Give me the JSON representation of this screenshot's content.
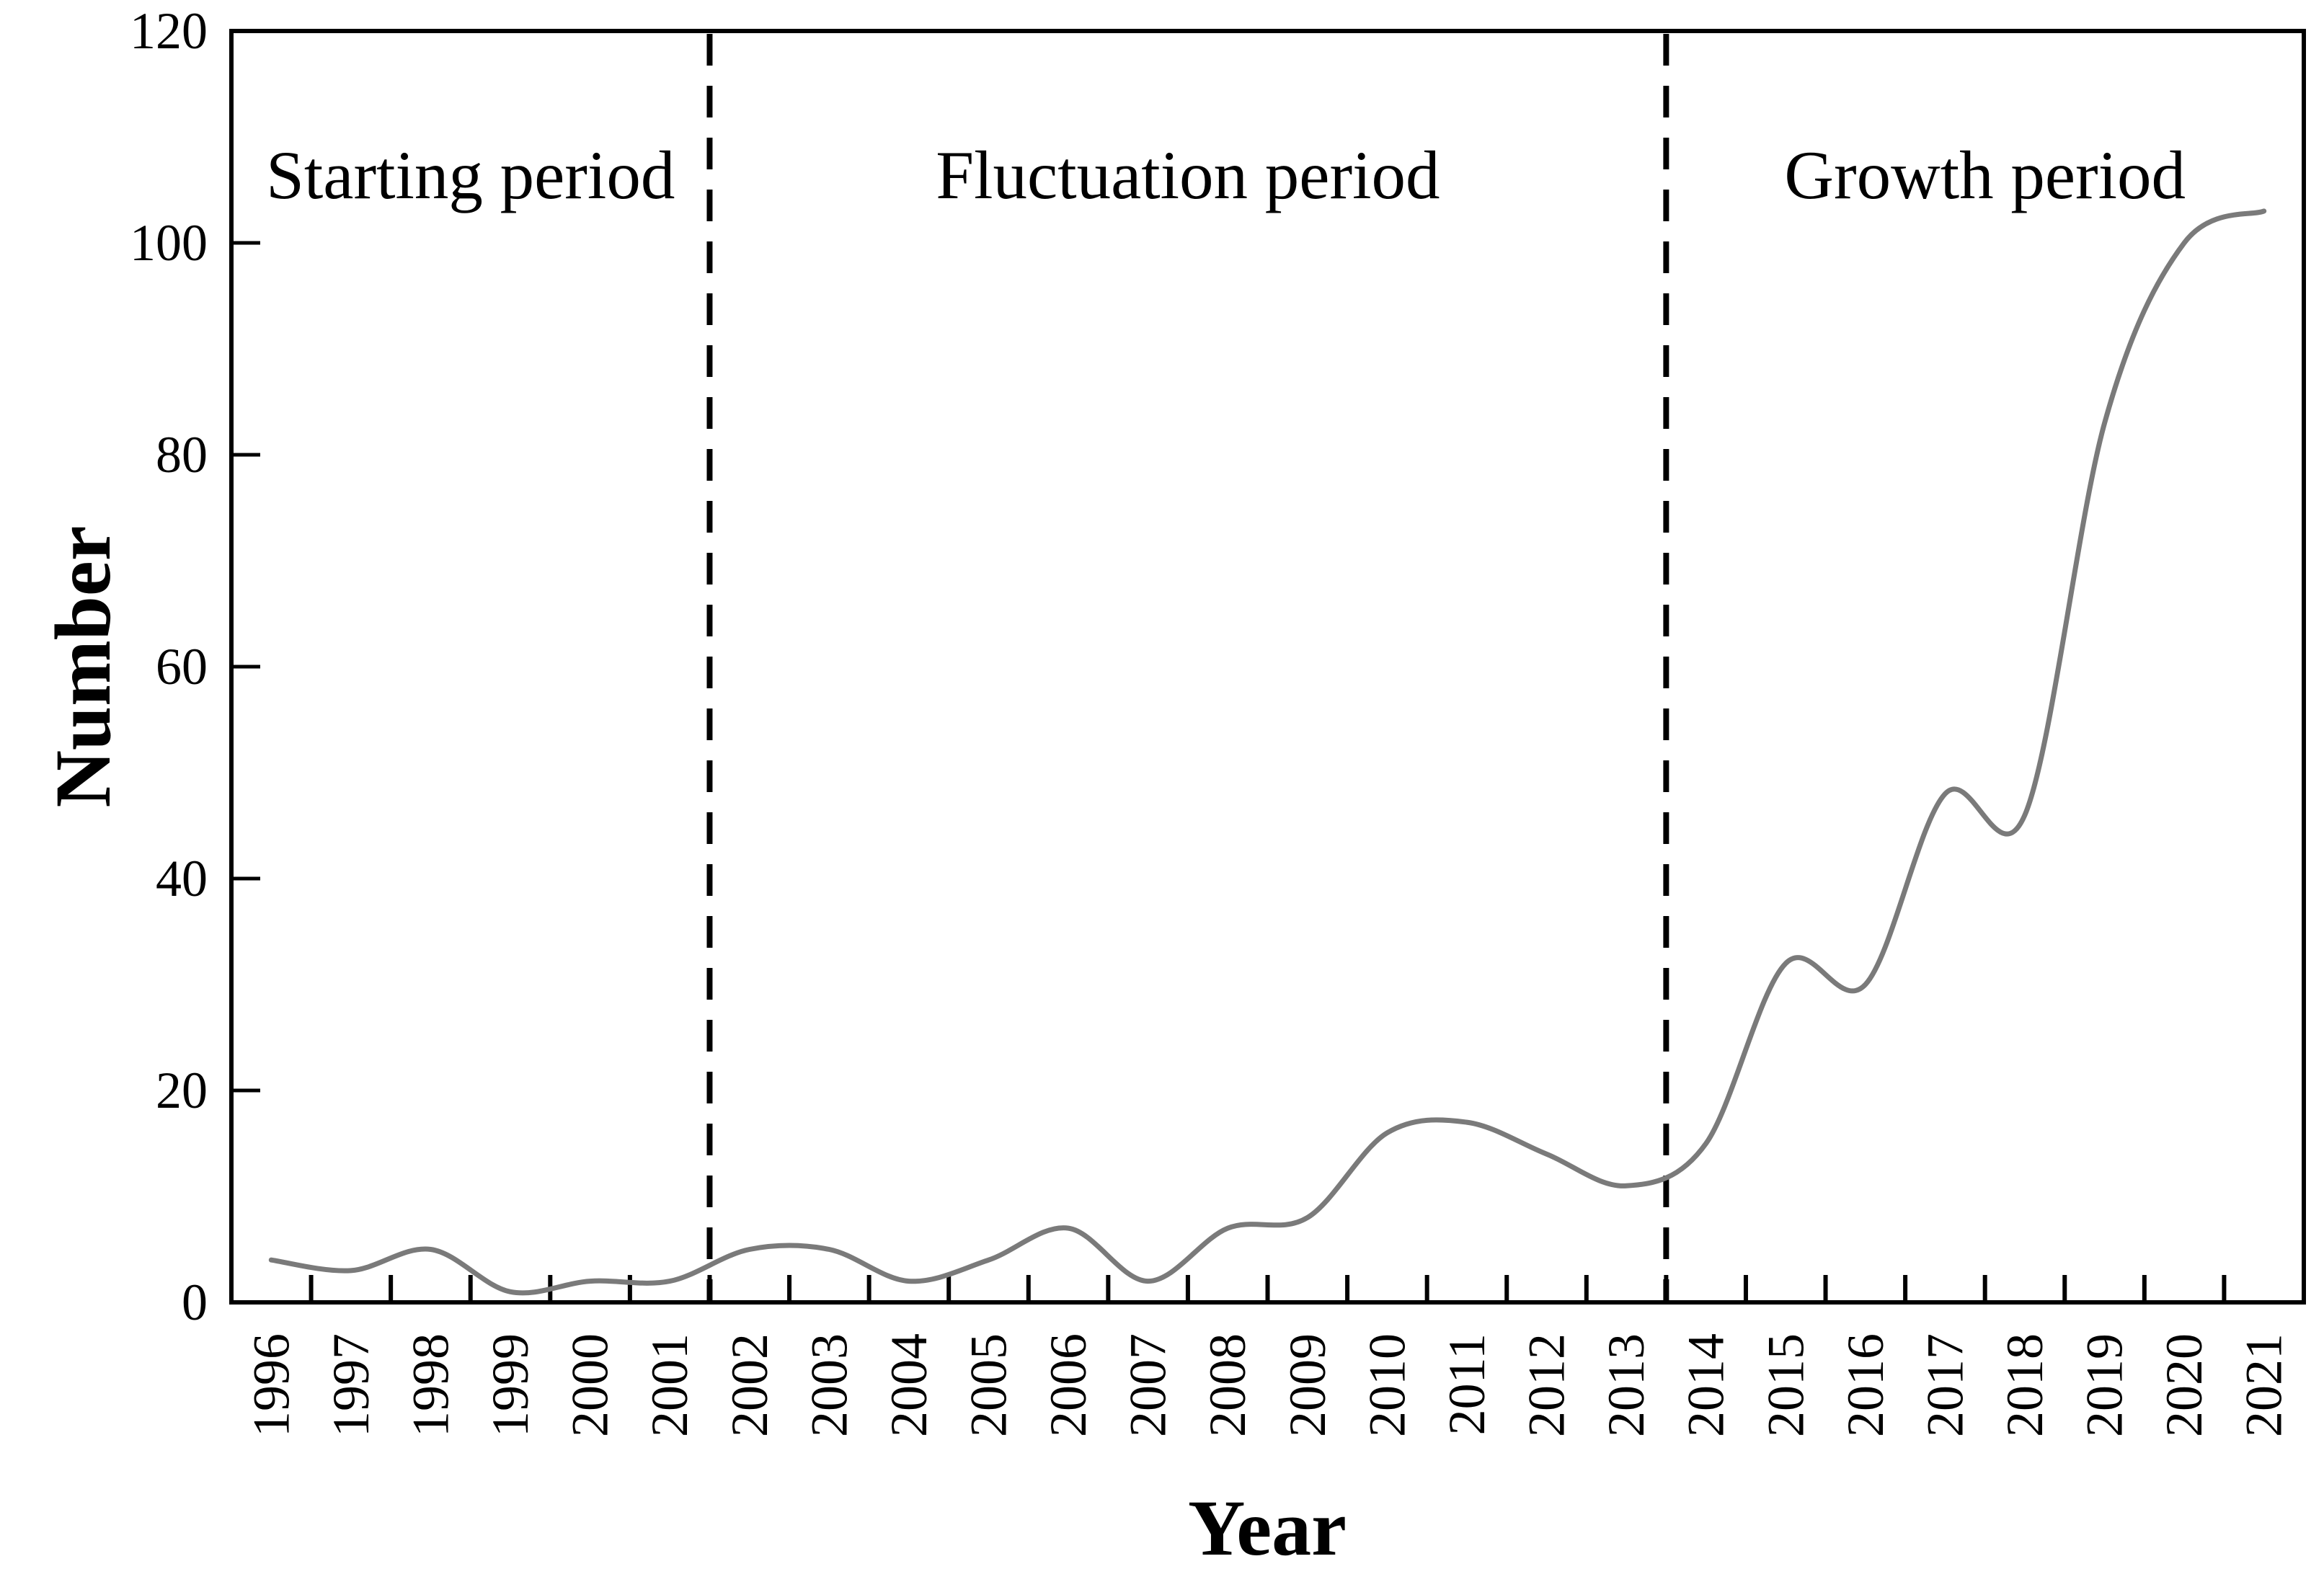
{
  "figure": {
    "background": "#ffffff",
    "axis_color": "#000000",
    "ylabel": "Number",
    "xlabel": "Year"
  },
  "chart_data": {
    "type": "line",
    "title": "",
    "xlabel": "Year",
    "ylabel": "Number",
    "categories": [
      "1996",
      "1997",
      "1998",
      "1999",
      "2000",
      "2001",
      "2002",
      "2003",
      "2004",
      "2005",
      "2006",
      "2007",
      "2008",
      "2009",
      "2010",
      "2011",
      "2012",
      "2013",
      "2014",
      "2015",
      "2016",
      "2017",
      "2018",
      "2019",
      "2020",
      "2021"
    ],
    "values": [
      4,
      3,
      5,
      1,
      2,
      2,
      5,
      5,
      2,
      4,
      7,
      2,
      7,
      8,
      16,
      17,
      14,
      11,
      15,
      32,
      30,
      48,
      46,
      83,
      100,
      103
    ],
    "ylim": [
      0,
      120
    ],
    "yticks": [
      0,
      20,
      40,
      60,
      80,
      100,
      120
    ],
    "grid": false,
    "legend_position": "none",
    "smooth": true,
    "line_color": "#7a7a7a",
    "divider_color": "#000000",
    "dashed_dividers_after": [
      "2001",
      "2013"
    ],
    "annotations": [
      {
        "text": "Starting period",
        "from_year": "1996",
        "to_year": "2001"
      },
      {
        "text": "Fluctuation period",
        "from_year": "2002",
        "to_year": "2013"
      },
      {
        "text": "Growth period",
        "from_year": "2014",
        "to_year": "2021"
      }
    ]
  }
}
